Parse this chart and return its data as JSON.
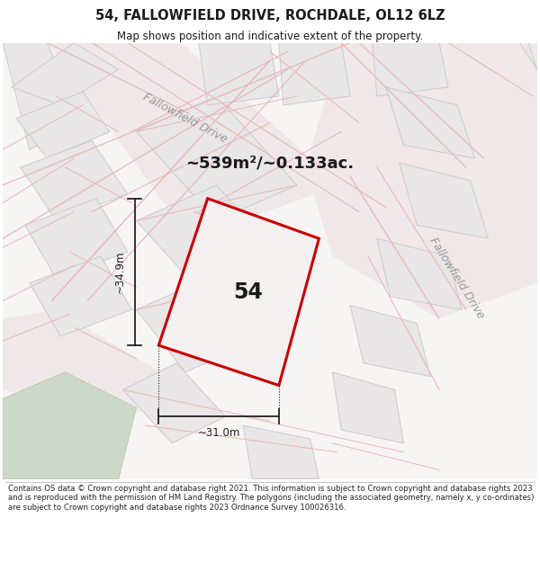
{
  "title": "54, FALLOWFIELD DRIVE, ROCHDALE, OL12 6LZ",
  "subtitle": "Map shows position and indicative extent of the property.",
  "area_text": "~539m²/~0.133ac.",
  "label_54": "54",
  "dim_width": "~31.0m",
  "dim_height": "~34.9m",
  "road_label_upper": "Fallowfield Drive",
  "road_label_lower": "Fallowfield Drive",
  "footer": "Contains OS data © Crown copyright and database right 2021. This information is subject to Crown copyright and database rights 2023 and is reproduced with the permission of HM Land Registry. The polygons (including the associated geometry, namely x, y co-ordinates) are subject to Crown copyright and database rights 2023 Ordnance Survey 100026316.",
  "bg_color": "#f7f4f4",
  "building_fill": "#e8e6e6",
  "building_edge": "#cccccc",
  "road_line_color": "#e8b8b8",
  "highlight_color": "#cc0000",
  "dim_color": "#222222",
  "label_color": "#999999",
  "text_color": "#1a1a1a",
  "green_fill": "#cdd9c8",
  "footer_text_color": "#222222",
  "white": "#ffffff"
}
